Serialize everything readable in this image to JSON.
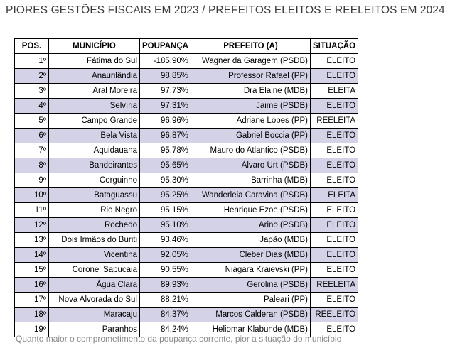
{
  "title": "PIORES GESTÕES FISCAIS EM 2023 / PREFEITOS ELEITOS E REELEITOS EM 2024",
  "table": {
    "headers": [
      "POS.",
      "MUNICÍPIO",
      "POUPANÇA",
      "PREFEITO (A)",
      "SITUAÇÃO"
    ],
    "rows": [
      [
        "1º",
        "Fátima do Sul",
        "-185,90%",
        "Wagner da Garagem (PSDB)",
        "ELEITO"
      ],
      [
        "2º",
        "Anaurilândia",
        "98,85%",
        "Professor Rafael (PP)",
        "ELEITO"
      ],
      [
        "3º",
        "Aral Moreira",
        "97,73%",
        "Dra Elaine (MDB)",
        "ELEITA"
      ],
      [
        "4º",
        "Selvíria",
        "97,31%",
        "Jaime (PSDB)",
        "ELEITO"
      ],
      [
        "5º",
        "Campo Grande",
        "96,96%",
        "Adriane Lopes (PP)",
        "REELEITA"
      ],
      [
        "6º",
        "Bela Vista",
        "96,87%",
        "Gabriel Boccia (PP)",
        "ELEITO"
      ],
      [
        "7º",
        "Aquidauana",
        "95,78%",
        "Mauro do Atlantico (PSDB)",
        "ELEITO"
      ],
      [
        "8º",
        "Bandeirantes",
        "95,65%",
        "Álvaro Urt (PSDB)",
        "ELEITO"
      ],
      [
        "9º",
        "Corguinho",
        "95,30%",
        "Barrinha (MDB)",
        "ELEITO"
      ],
      [
        "10º",
        "Bataguassu",
        "95,25%",
        "Wanderleia Caravina (PSDB)",
        "ELEITA"
      ],
      [
        "11º",
        "Rio Negro",
        "95,15%",
        "Henrique Ezoe (PSDB)",
        "ELEITO"
      ],
      [
        "12º",
        "Rochedo",
        "95,10%",
        "Arino (PSDB)",
        "ELEITO"
      ],
      [
        "13º",
        "Dois Irmãos do Buriti",
        "93,46%",
        "Japão (MDB)",
        "ELEITO"
      ],
      [
        "14º",
        "Vicentina",
        "92,05%",
        "Cleber Dias (MDB)",
        "ELEITO"
      ],
      [
        "15º",
        "Coronel Sapucaia",
        "90,55%",
        "Niágara Kraievski (PP)",
        "ELEITO"
      ],
      [
        "16º",
        "Água Clara",
        "89,93%",
        "Gerolina (PSDB)",
        "REELEITA"
      ],
      [
        "17º",
        "Nova Alvorada do Sul",
        "88,21%",
        "Paleari (PP)",
        "ELEITO"
      ],
      [
        "18º",
        "Maracaju",
        "84,37%",
        "Marcos Calderan  (PSDB)",
        "REELEITO"
      ],
      [
        "19º",
        "Paranhos",
        "84,24%",
        "Heliomar Klabunde (MDB)",
        "ELEITO"
      ]
    ]
  },
  "footnote": "Quanto maior o comprometimento da poupança corrente, pior a situação do município",
  "colors": {
    "row_shade": "#d4d2e6",
    "row_plain": "#ffffff",
    "heading_text": "#3a3a3a",
    "footnote_text": "#8a8a8a"
  }
}
